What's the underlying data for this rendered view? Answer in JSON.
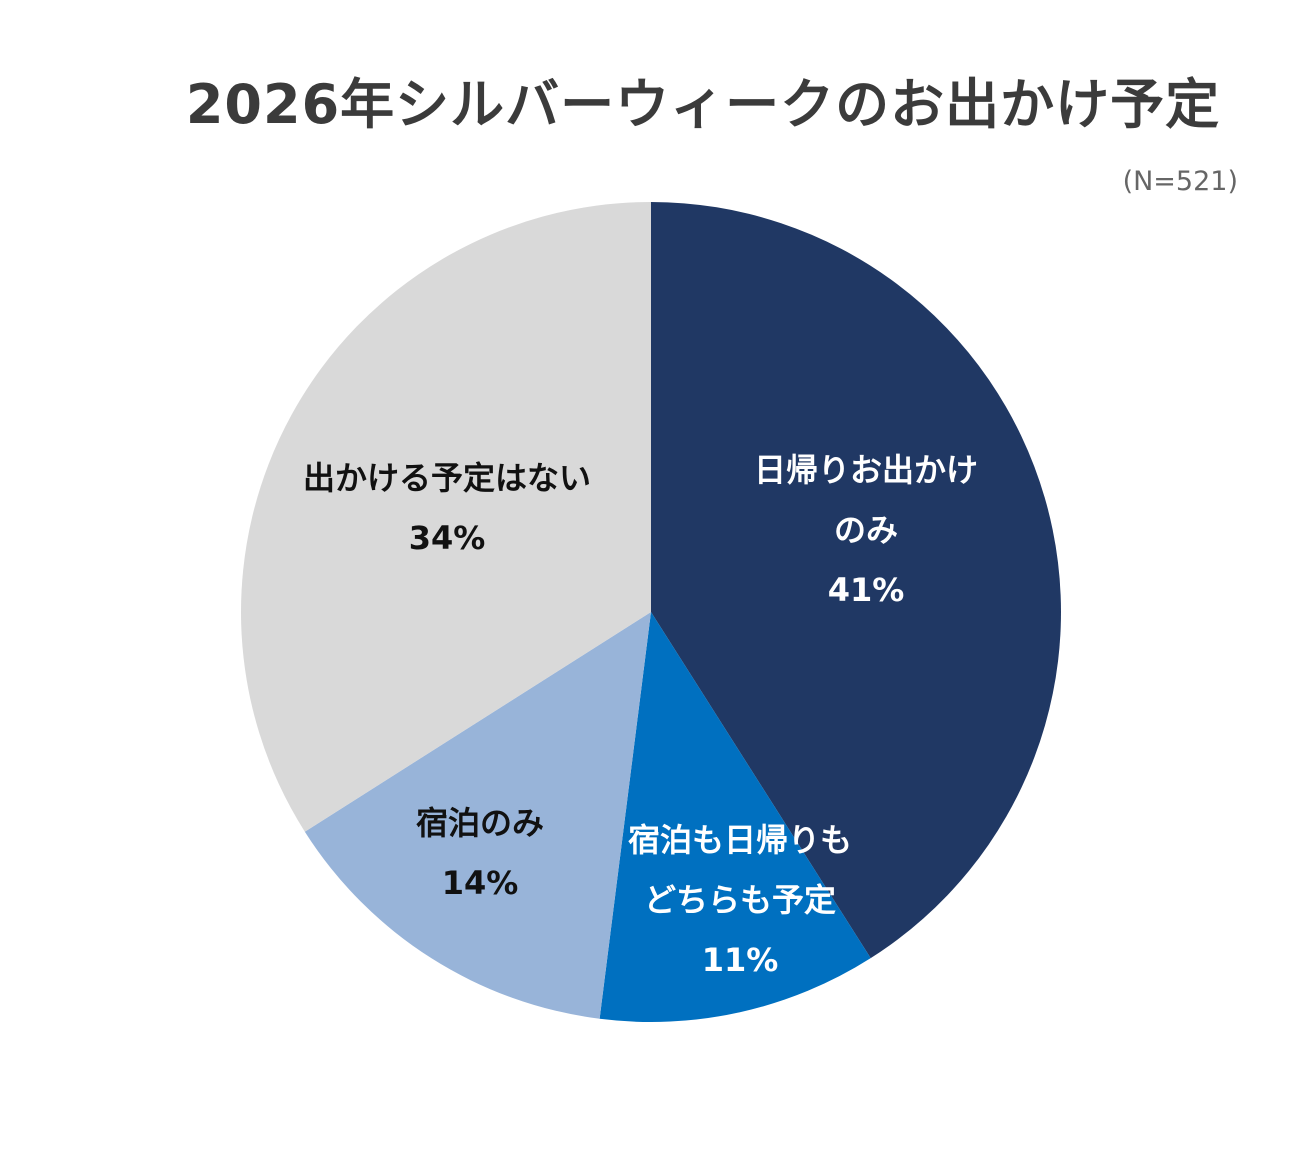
{
  "chart_data": {
    "type": "pie",
    "title": "2026年シルバーウィークのお出かけ予定",
    "note": "(N=521)",
    "start": "12 o'clock, clockwise",
    "slices": [
      {
        "label": [
          "日帰りお出かけ",
          "のみ"
        ],
        "value": 41,
        "value_text": "41%",
        "color": "#203864",
        "text_color": "#ffffff"
      },
      {
        "label": [
          "宿泊も日帰りも",
          "どちらも予定"
        ],
        "value": 11,
        "value_text": "11%",
        "color": "#0070c0",
        "text_color": "#ffffff"
      },
      {
        "label": [
          "宿泊のみ"
        ],
        "value": 14,
        "value_text": "14%",
        "color": "#98b4d9",
        "text_color": "#111111"
      },
      {
        "label": [
          "出かける予定はない"
        ],
        "value": 34,
        "value_text": "34%",
        "color": "#d9d9d9",
        "text_color": "#111111"
      }
    ]
  }
}
